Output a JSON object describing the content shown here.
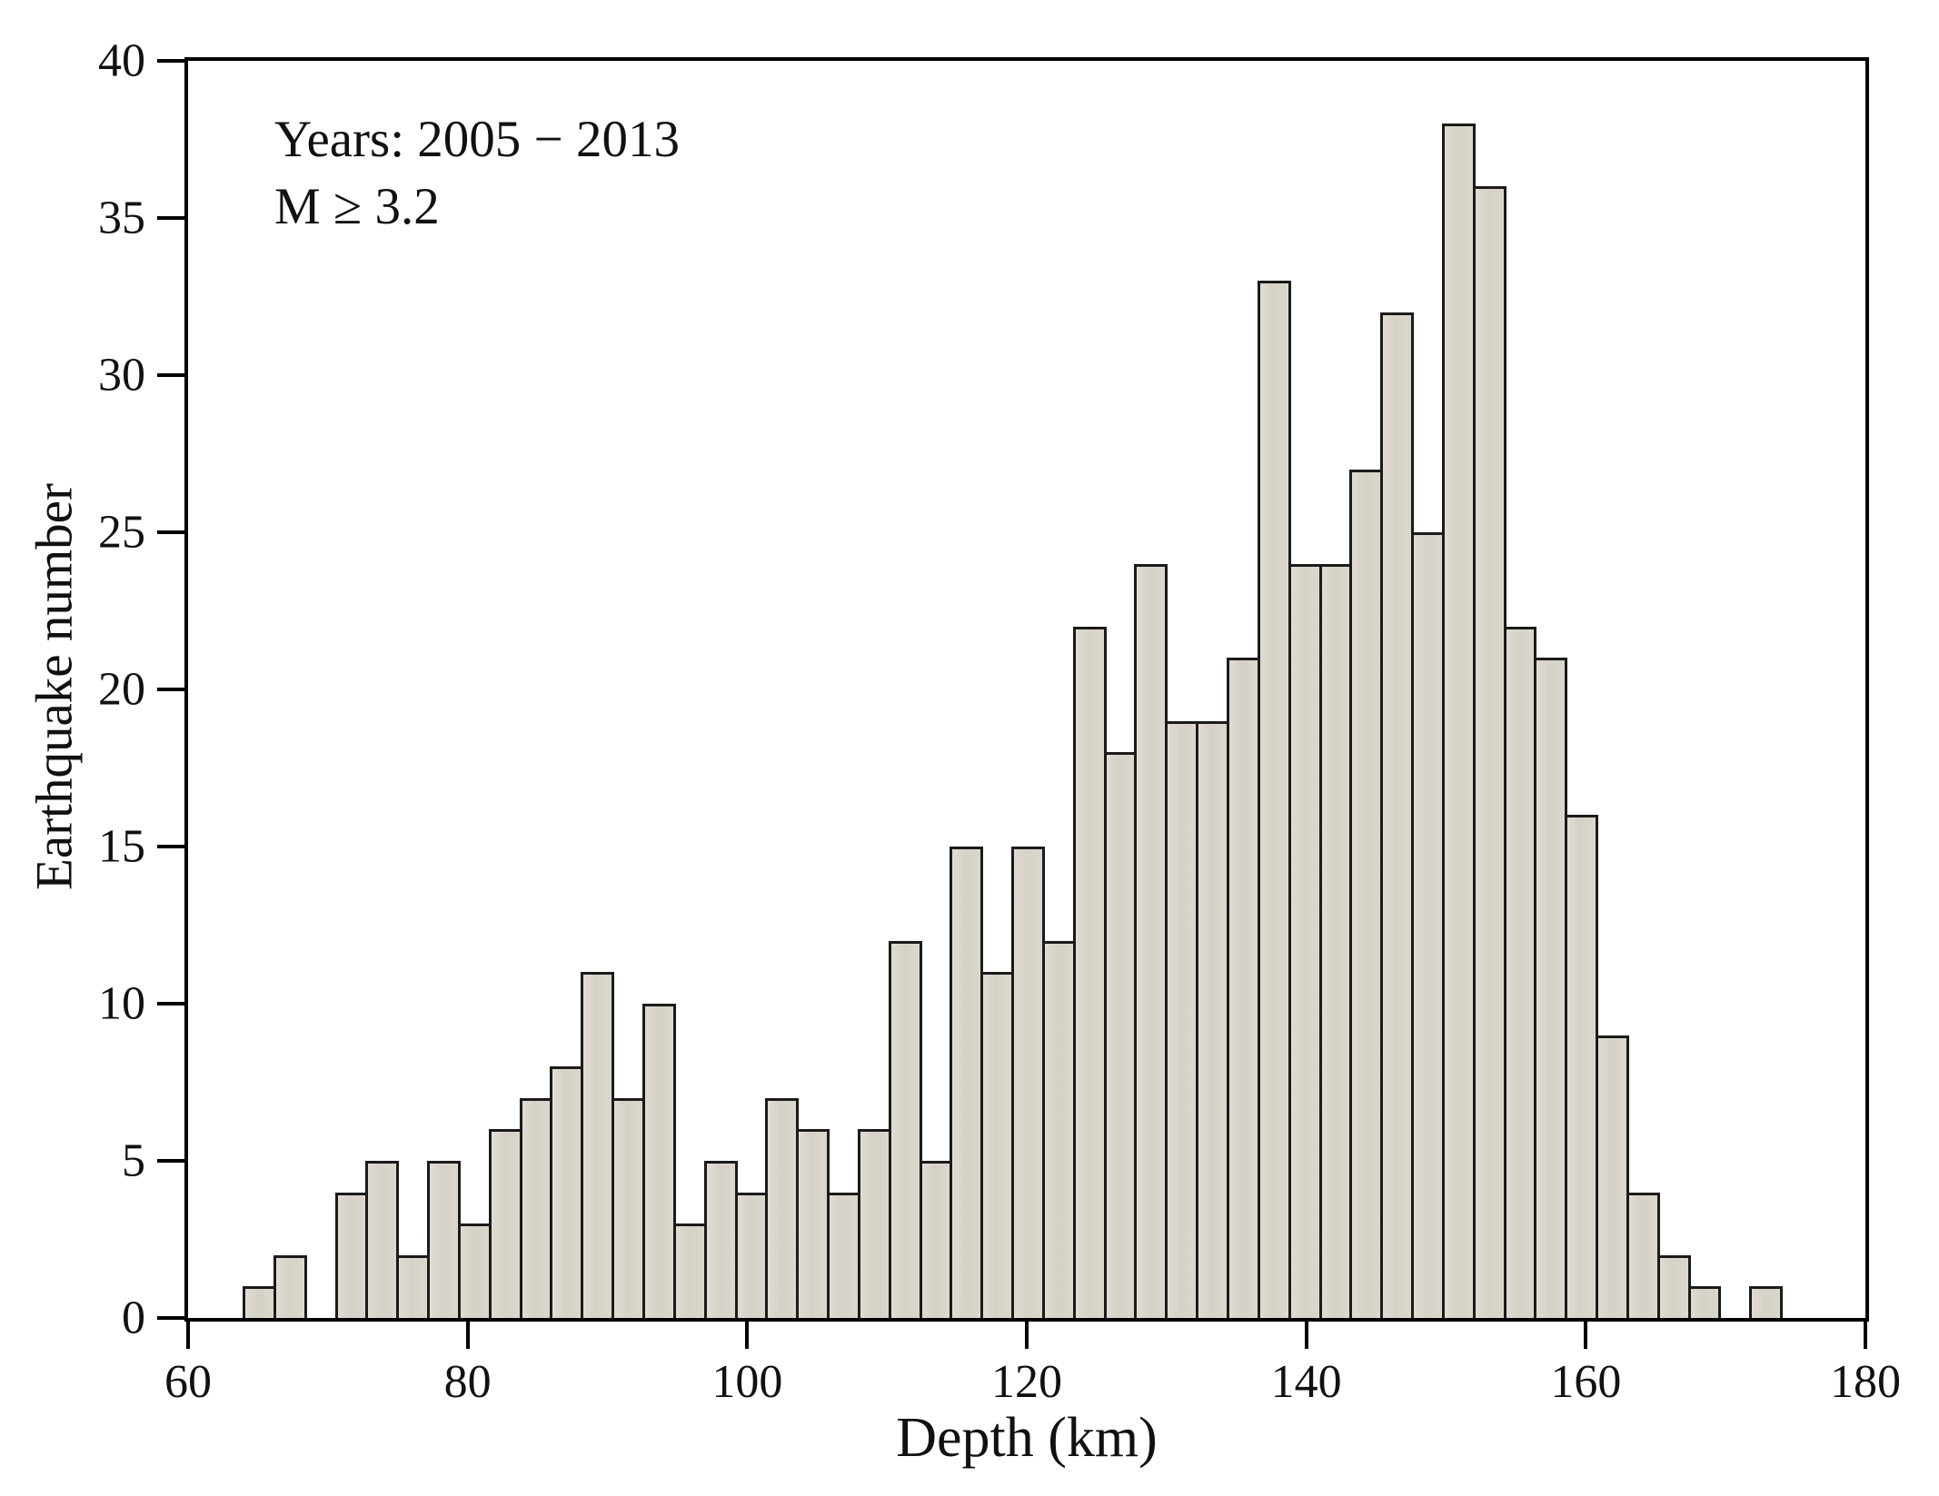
{
  "page": {
    "background_color": "#ffffff",
    "text_color": "#111111"
  },
  "chart_data": {
    "type": "bar",
    "subtype": "histogram",
    "title": "",
    "xlabel": "Depth (km)",
    "ylabel": "Earthquake number",
    "annotation": {
      "line1": "Years: 2005 − 2013",
      "line2": "M ≥ 3.2"
    },
    "xlim": [
      60,
      180
    ],
    "ylim": [
      0,
      40
    ],
    "x_ticks": [
      60,
      80,
      100,
      120,
      140,
      160,
      180
    ],
    "y_ticks": [
      0,
      5,
      10,
      15,
      20,
      25,
      30,
      35,
      40
    ],
    "grid": false,
    "legend": null,
    "bins": {
      "start_depth_km": 64,
      "width_km": 2.2
    },
    "values": [
      1,
      2,
      0,
      4,
      5,
      2,
      5,
      3,
      6,
      7,
      8,
      11,
      7,
      10,
      3,
      5,
      4,
      7,
      6,
      4,
      6,
      12,
      5,
      15,
      11,
      15,
      12,
      22,
      18,
      24,
      19,
      19,
      21,
      33,
      24,
      24,
      27,
      32,
      25,
      38,
      36,
      22,
      21,
      16,
      9,
      4,
      2,
      1,
      0,
      1
    ],
    "colors": {
      "bar_fill": "#d8d3c8",
      "bar_edge": "#1b1b1b",
      "axis": "#000000",
      "text": "#111111"
    }
  }
}
